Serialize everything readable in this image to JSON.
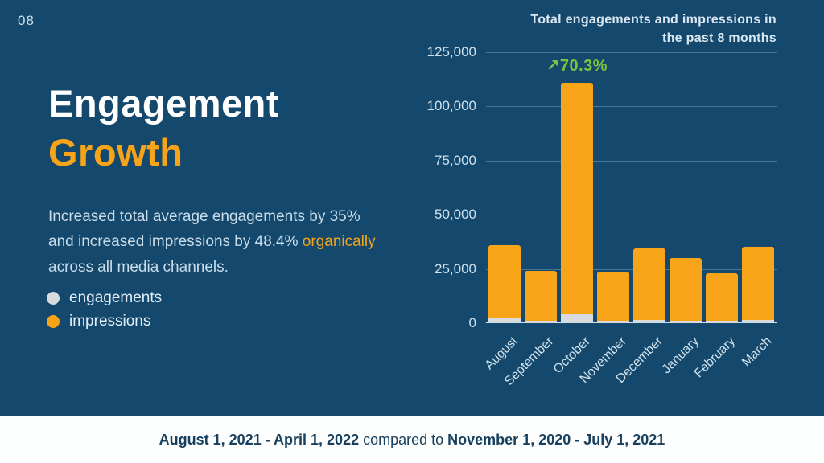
{
  "slide": {
    "page_number": "08",
    "title_line1": "Engagement",
    "title_line2": "Growth",
    "description": {
      "part1": "Increased total average engagements by 35% and increased impressions by 48.4% ",
      "highlight": "organically",
      "part2": " across all media channels."
    },
    "legend": {
      "engagements_label": "engagements",
      "impressions_label": "impressions"
    },
    "footer": {
      "range_current": "August 1, 2021 - April 1, 2022",
      "connector": " compared to ",
      "range_previous": "November 1, 2020 - July 1, 2021"
    }
  },
  "colors": {
    "background": "#14486C",
    "accent_orange": "#F7A418",
    "engagements_gray": "#D8DBDD",
    "annotation_green": "#7DC242",
    "light_text": "#CFE0EA",
    "footer_text": "#17405E"
  },
  "chart_data": {
    "type": "bar",
    "stacked": true,
    "title": "Total engagements and impressions in the past 8 months",
    "title_lines": [
      "Total engagements and impressions in",
      "the past 8 months"
    ],
    "categories": [
      "August",
      "September",
      "October",
      "November",
      "December",
      "January",
      "February",
      "March"
    ],
    "series": [
      {
        "name": "engagements",
        "color": "#D8DBDD",
        "values": [
          2200,
          1000,
          4000,
          1000,
          1400,
          1000,
          1000,
          1400
        ]
      },
      {
        "name": "impressions",
        "color": "#F7A418",
        "values": [
          33800,
          23000,
          107000,
          22500,
          33100,
          29000,
          22000,
          33600
        ]
      }
    ],
    "totals": [
      36000,
      24000,
      111000,
      23500,
      34500,
      30000,
      23000,
      35000
    ],
    "annotation": {
      "category": "October",
      "index": 2,
      "text": "↗70.3%"
    },
    "ylim": [
      0,
      125000
    ],
    "yticks": [
      0,
      25000,
      50000,
      75000,
      100000,
      125000
    ],
    "ytick_labels": [
      "0",
      "25,000",
      "50,000",
      "75,000",
      "100,000",
      "125,000"
    ],
    "grid": true,
    "legend_position": "left-panel",
    "xlabel_rotation": -45
  }
}
